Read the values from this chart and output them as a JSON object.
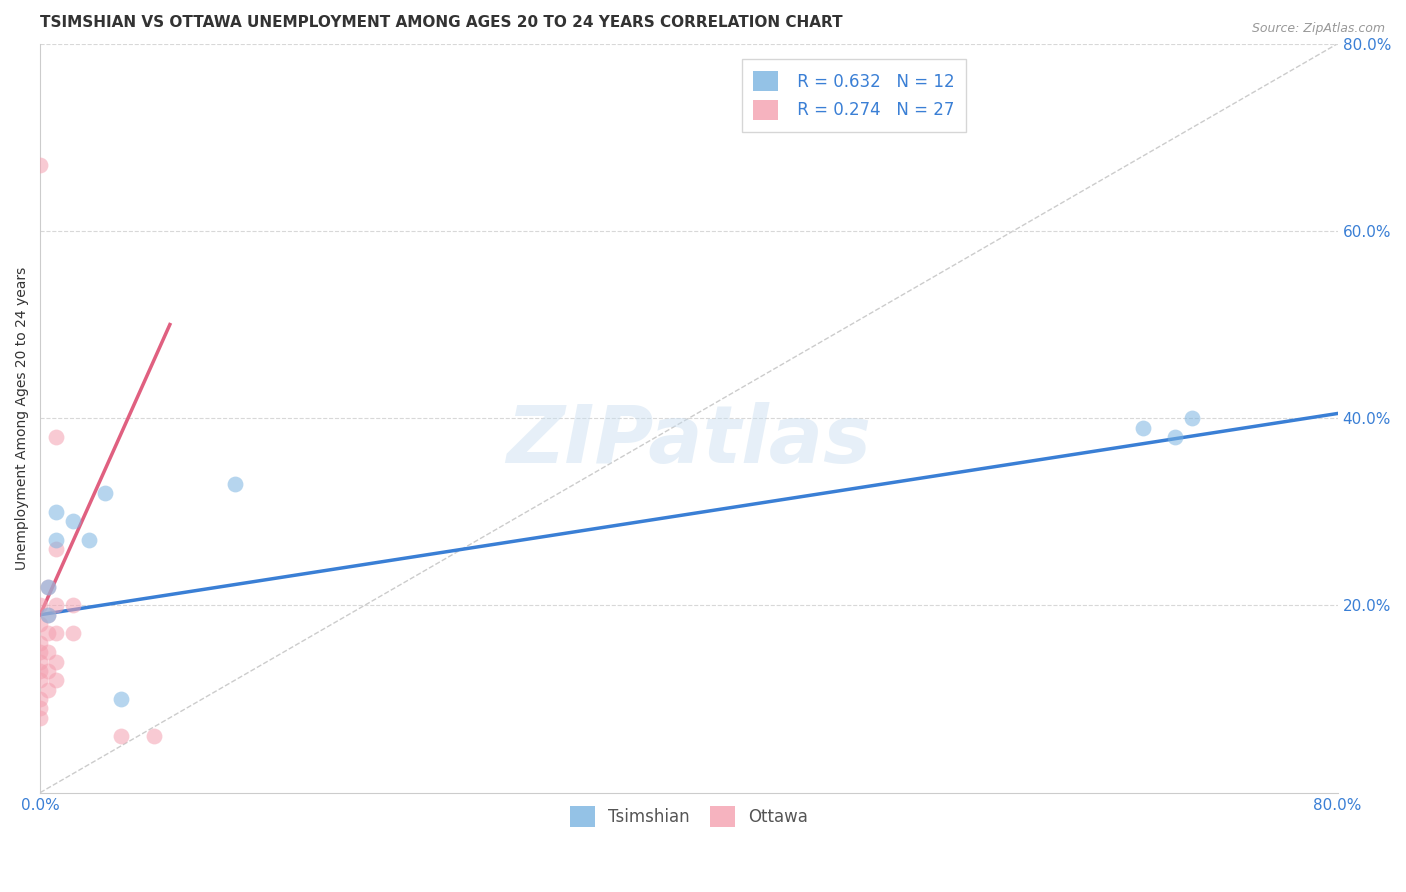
{
  "title": "TSIMSHIAN VS OTTAWA UNEMPLOYMENT AMONG AGES 20 TO 24 YEARS CORRELATION CHART",
  "source": "Source: ZipAtlas.com",
  "ylabel": "Unemployment Among Ages 20 to 24 years",
  "xlim": [
    0.0,
    0.8
  ],
  "ylim": [
    0.0,
    0.8
  ],
  "xtick_labels": [
    "0.0%",
    "80.0%"
  ],
  "xtick_vals": [
    0.0,
    0.8
  ],
  "ytick_labels_right": [
    "80.0%",
    "60.0%",
    "40.0%",
    "20.0%"
  ],
  "ytick_vals_right": [
    0.8,
    0.6,
    0.4,
    0.2
  ],
  "background_color": "#ffffff",
  "watermark_text": "ZIPatlas",
  "tsimshian_color": "#7ab3e0",
  "ottawa_color": "#f4a0b0",
  "tsimshian_R": 0.632,
  "tsimshian_N": 12,
  "ottawa_R": 0.274,
  "ottawa_N": 27,
  "tsimshian_line_color": "#3a7fd5",
  "ottawa_line_color": "#e06080",
  "diagonal_color": "#cccccc",
  "tsimshian_x": [
    0.005,
    0.005,
    0.01,
    0.01,
    0.02,
    0.03,
    0.04,
    0.05,
    0.68,
    0.7,
    0.71,
    0.12
  ],
  "tsimshian_y": [
    0.19,
    0.22,
    0.27,
    0.3,
    0.29,
    0.27,
    0.32,
    0.1,
    0.39,
    0.38,
    0.4,
    0.33
  ],
  "ottawa_x": [
    0.0,
    0.0,
    0.0,
    0.0,
    0.0,
    0.0,
    0.0,
    0.0,
    0.0,
    0.0,
    0.0,
    0.005,
    0.005,
    0.005,
    0.005,
    0.005,
    0.005,
    0.01,
    0.01,
    0.01,
    0.01,
    0.01,
    0.01,
    0.02,
    0.02,
    0.05,
    0.07
  ],
  "ottawa_y": [
    0.67,
    0.2,
    0.18,
    0.16,
    0.15,
    0.14,
    0.13,
    0.12,
    0.1,
    0.09,
    0.08,
    0.22,
    0.19,
    0.17,
    0.15,
    0.13,
    0.11,
    0.38,
    0.26,
    0.2,
    0.17,
    0.14,
    0.12,
    0.2,
    0.17,
    0.06,
    0.06
  ],
  "grid_color": "#d8d8d8",
  "marker_size": 130,
  "marker_alpha": 0.55,
  "title_fontsize": 11,
  "axis_label_fontsize": 10,
  "tick_fontsize": 11,
  "legend_fontsize": 12,
  "tsimshian_line_y0": 0.19,
  "tsimshian_line_y1": 0.405,
  "ottawa_line_x0": 0.0,
  "ottawa_line_y0": 0.19,
  "ottawa_line_x1": 0.08,
  "ottawa_line_y1": 0.5
}
